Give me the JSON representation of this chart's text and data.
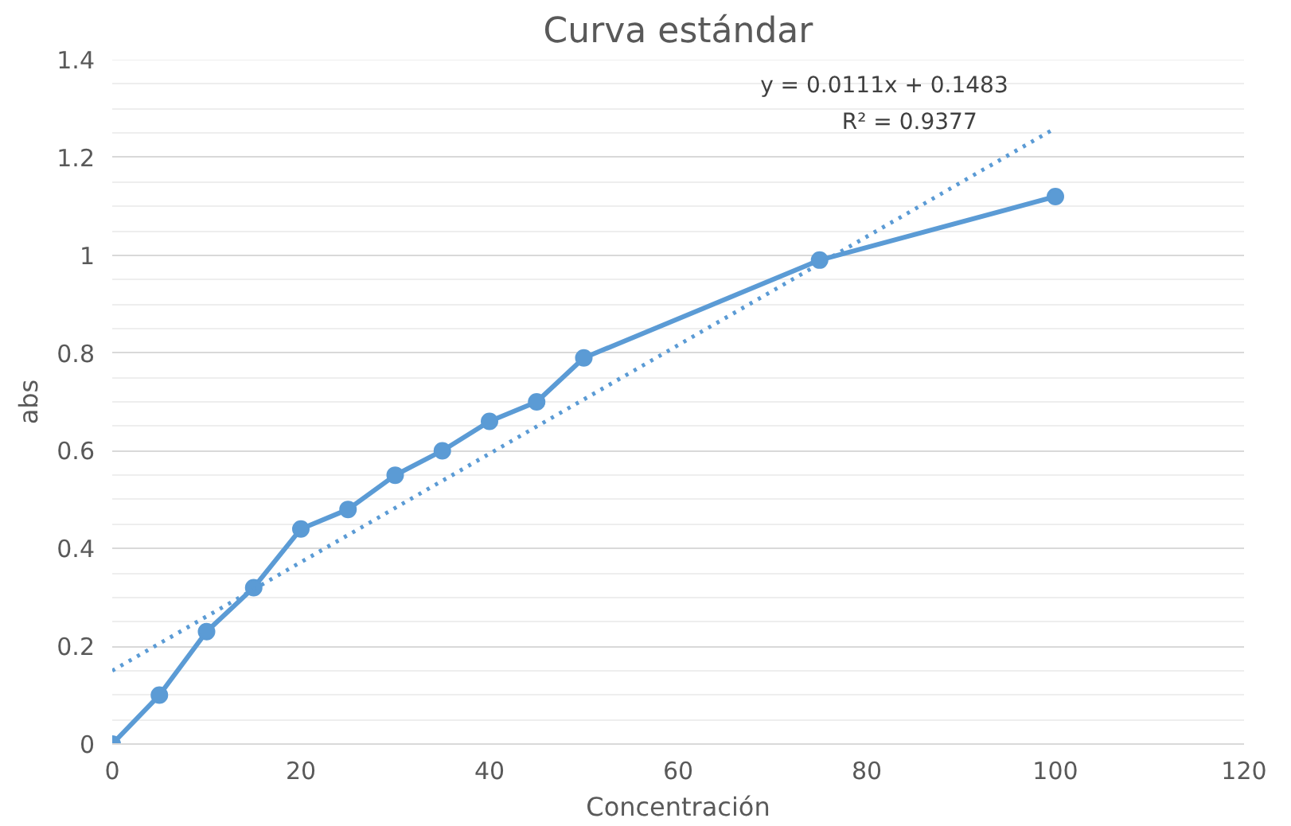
{
  "chart_data": {
    "type": "line",
    "title": "Curva estándar",
    "xlabel": "Concentración",
    "ylabel": "abs",
    "xlim": [
      0,
      120
    ],
    "xticks": [
      0,
      20,
      40,
      60,
      80,
      100,
      120
    ],
    "ylim": [
      0,
      1.4
    ],
    "yticks": [
      0,
      0.2,
      0.4,
      0.6,
      0.8,
      1,
      1.2,
      1.4
    ],
    "grid": "y",
    "series": [
      {
        "color": "#5b9bd5",
        "marker": "circle",
        "line_style": "solid",
        "x": [
          0,
          5,
          10,
          15,
          20,
          25,
          30,
          35,
          40,
          45,
          50,
          75,
          100
        ],
        "values": [
          0,
          0.1,
          0.23,
          0.32,
          0.44,
          0.48,
          0.55,
          0.6,
          0.66,
          0.7,
          0.79,
          0.99,
          1.12
        ]
      },
      {
        "color": "#5b9bd5",
        "marker": "none",
        "line_style": "dotted",
        "x": [
          0,
          100
        ],
        "values": [
          0.15,
          1.26
        ]
      }
    ],
    "annotations": [
      "y = 0.0111x + 0.1483",
      "R² = 0.9377"
    ]
  }
}
